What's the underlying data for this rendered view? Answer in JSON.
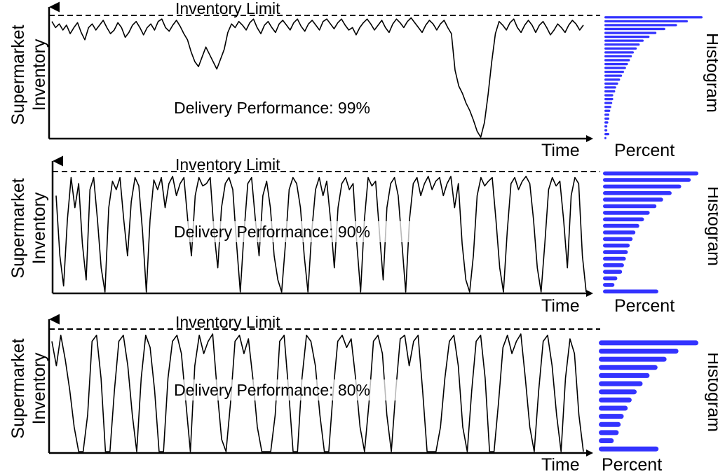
{
  "chart_data": [
    {
      "type": "line",
      "panel": "top",
      "ylabel": [
        "Supermarket",
        "Inventory"
      ],
      "xlabel": "Time",
      "limit_label": "Inventory Limit",
      "annotation": "Delivery Performance: 99%",
      "histogram_label": "Histogram",
      "histogram_xlabel": "Percent",
      "ylim": [
        0,
        1
      ],
      "inventory_limit": 1,
      "series": [
        {
          "values": [
            0.95,
            0.9,
            0.93,
            0.88,
            0.92,
            0.85,
            0.9,
            0.94,
            0.86,
            0.8,
            0.9,
            0.93,
            0.88,
            0.92,
            0.96,
            0.9,
            0.85,
            0.88,
            0.94,
            0.9,
            0.82,
            0.86,
            0.92,
            0.95,
            0.9,
            0.84,
            0.9,
            0.93,
            0.88,
            0.95,
            0.97,
            0.9,
            0.87,
            0.92,
            0.96,
            0.91,
            0.85,
            0.8,
            0.7,
            0.62,
            0.58,
            0.66,
            0.74,
            0.68,
            0.62,
            0.56,
            0.64,
            0.72,
            0.86,
            0.93,
            0.9,
            0.95,
            0.92,
            0.88,
            0.94,
            0.97,
            0.9,
            0.85,
            0.92,
            0.95,
            0.9,
            0.86,
            0.93,
            0.96,
            0.92,
            0.88,
            0.94,
            0.97,
            0.91,
            0.87,
            0.93,
            0.96,
            0.92,
            0.88,
            0.95,
            0.97,
            0.93,
            0.89,
            0.94,
            0.97,
            0.92,
            0.88,
            0.9,
            0.84,
            0.9,
            0.94,
            0.97,
            0.93,
            0.88,
            0.92,
            0.96,
            0.9,
            0.86,
            0.93,
            0.97,
            0.94,
            0.9,
            0.95,
            0.98,
            0.94,
            0.9,
            0.86,
            0.92,
            0.96,
            0.93,
            0.88,
            0.93,
            0.96,
            0.9,
            0.85,
            0.55,
            0.42,
            0.36,
            0.28,
            0.22,
            0.14,
            0.05,
            0.0,
            0.12,
            0.35,
            0.62,
            0.85,
            0.95,
            0.92,
            0.88,
            0.94,
            0.97,
            0.9,
            0.86,
            0.92,
            0.96,
            0.92,
            0.86,
            0.92,
            0.95,
            0.9,
            0.84,
            0.88,
            0.93,
            0.9,
            0.86,
            0.92,
            0.96,
            0.93,
            0.88,
            0.92
          ]
        }
      ],
      "histogram": [
        0.02,
        0.05,
        0.03,
        0.03,
        0.04,
        0.05,
        0.05,
        0.06,
        0.07,
        0.08,
        0.09,
        0.09,
        0.11,
        0.12,
        0.14,
        0.16,
        0.18,
        0.2,
        0.22,
        0.24,
        0.26,
        0.28,
        0.3,
        0.33,
        0.36,
        0.4,
        0.46,
        0.53,
        0.62,
        0.74,
        0.85,
        1.0
      ]
    },
    {
      "type": "line",
      "panel": "middle",
      "ylabel": [
        "Supermarket",
        "Inventory"
      ],
      "xlabel": "Time",
      "limit_label": "Inventory Limit",
      "annotation": "Delivery Performance: 90%",
      "histogram_label": "Histogram",
      "histogram_xlabel": "Percent",
      "ylim": [
        0,
        1
      ],
      "inventory_limit": 1,
      "series": [
        {
          "values": [
            0.8,
            0.3,
            0.05,
            0.6,
            0.95,
            0.7,
            0.9,
            0.4,
            0.1,
            0.85,
            0.95,
            0.6,
            0.2,
            0.0,
            0.7,
            0.92,
            0.85,
            0.95,
            0.6,
            0.3,
            0.75,
            0.95,
            0.88,
            0.5,
            0.0,
            0.6,
            0.93,
            0.85,
            0.95,
            0.7,
            0.9,
            0.96,
            0.8,
            0.9,
            0.95,
            0.6,
            0.3,
            0.8,
            0.95,
            0.88,
            0.9,
            0.95,
            0.5,
            0.2,
            0.7,
            0.9,
            0.95,
            0.85,
            0.4,
            0.0,
            0.5,
            0.9,
            0.95,
            0.6,
            0.3,
            0.8,
            0.92,
            0.7,
            0.3,
            0.1,
            0.0,
            0.4,
            0.85,
            0.95,
            0.9,
            0.7,
            0.3,
            0.0,
            0.5,
            0.85,
            0.95,
            0.8,
            0.92,
            0.6,
            0.2,
            0.7,
            0.9,
            0.95,
            0.85,
            0.9,
            0.4,
            0.0,
            0.6,
            0.95,
            0.88,
            0.92,
            0.5,
            0.1,
            0.7,
            0.9,
            0.95,
            0.8,
            0.4,
            0.0,
            0.6,
            0.9,
            0.95,
            0.8,
            0.9,
            0.96,
            0.85,
            0.92,
            0.95,
            0.8,
            0.9,
            0.96,
            0.7,
            0.9,
            0.4,
            0.1,
            0.0,
            0.3,
            0.8,
            0.95,
            0.88,
            0.92,
            0.95,
            0.6,
            0.2,
            0.0,
            0.5,
            0.9,
            0.95,
            0.85,
            0.92,
            0.96,
            0.9,
            0.6,
            0.2,
            0.0,
            0.4,
            0.85,
            0.95,
            0.88,
            0.92,
            0.6,
            0.2,
            0.8,
            0.95,
            0.9,
            0.3,
            0.0
          ]
        }
      ],
      "histogram": [
        0.58,
        0.12,
        0.15,
        0.2,
        0.22,
        0.24,
        0.26,
        0.28,
        0.31,
        0.34,
        0.38,
        0.43,
        0.49,
        0.56,
        0.63,
        0.72,
        0.82,
        0.92,
        1.0
      ]
    },
    {
      "type": "line",
      "panel": "bottom",
      "ylabel": [
        "Supermarket",
        "Inventory"
      ],
      "xlabel": "Time",
      "limit_label": "Inventory Limit",
      "annotation": "Delivery Performance: 80%",
      "histogram_label": "Histogram",
      "histogram_xlabel": "Percent",
      "ylim": [
        0,
        1
      ],
      "inventory_limit": 1,
      "series": [
        {
          "values": [
            0.9,
            0.7,
            0.95,
            0.75,
            0.5,
            0.2,
            0.0,
            0.0,
            0.3,
            0.9,
            0.95,
            0.6,
            0.0,
            0.0,
            0.5,
            0.9,
            0.95,
            0.7,
            0.3,
            0.0,
            0.6,
            0.95,
            0.85,
            0.5,
            0.0,
            0.0,
            0.6,
            0.9,
            0.95,
            0.8,
            0.4,
            0.0,
            0.7,
            0.95,
            0.8,
            0.9,
            0.96,
            0.5,
            0.1,
            0.0,
            0.4,
            0.9,
            0.95,
            0.8,
            0.92,
            0.6,
            0.2,
            0.0,
            0.0,
            0.0,
            0.3,
            0.9,
            0.95,
            0.5,
            0.0,
            0.0,
            0.6,
            0.95,
            0.9,
            0.7,
            0.3,
            0.0,
            0.0,
            0.5,
            0.9,
            0.95,
            0.85,
            0.92,
            0.6,
            0.2,
            0.0,
            0.4,
            0.9,
            0.95,
            0.8,
            0.3,
            0.0,
            0.5,
            0.92,
            0.95,
            0.7,
            0.9,
            0.95,
            0.5,
            0.0,
            0.0,
            0.0,
            0.2,
            0.6,
            0.9,
            0.95,
            0.7,
            0.2,
            0.0,
            0.5,
            0.9,
            0.95,
            0.6,
            0.0,
            0.0,
            0.4,
            0.85,
            0.95,
            0.8,
            0.9,
            0.96,
            0.6,
            0.2,
            0.0,
            0.5,
            0.9,
            0.95,
            0.7,
            0.3,
            0.0,
            0.6,
            0.92,
            0.8,
            0.3,
            0.0
          ]
        }
      ],
      "histogram": [
        0.6,
        0.15,
        0.2,
        0.22,
        0.25,
        0.29,
        0.33,
        0.38,
        0.44,
        0.51,
        0.59,
        0.68,
        0.8,
        1.0
      ]
    }
  ]
}
